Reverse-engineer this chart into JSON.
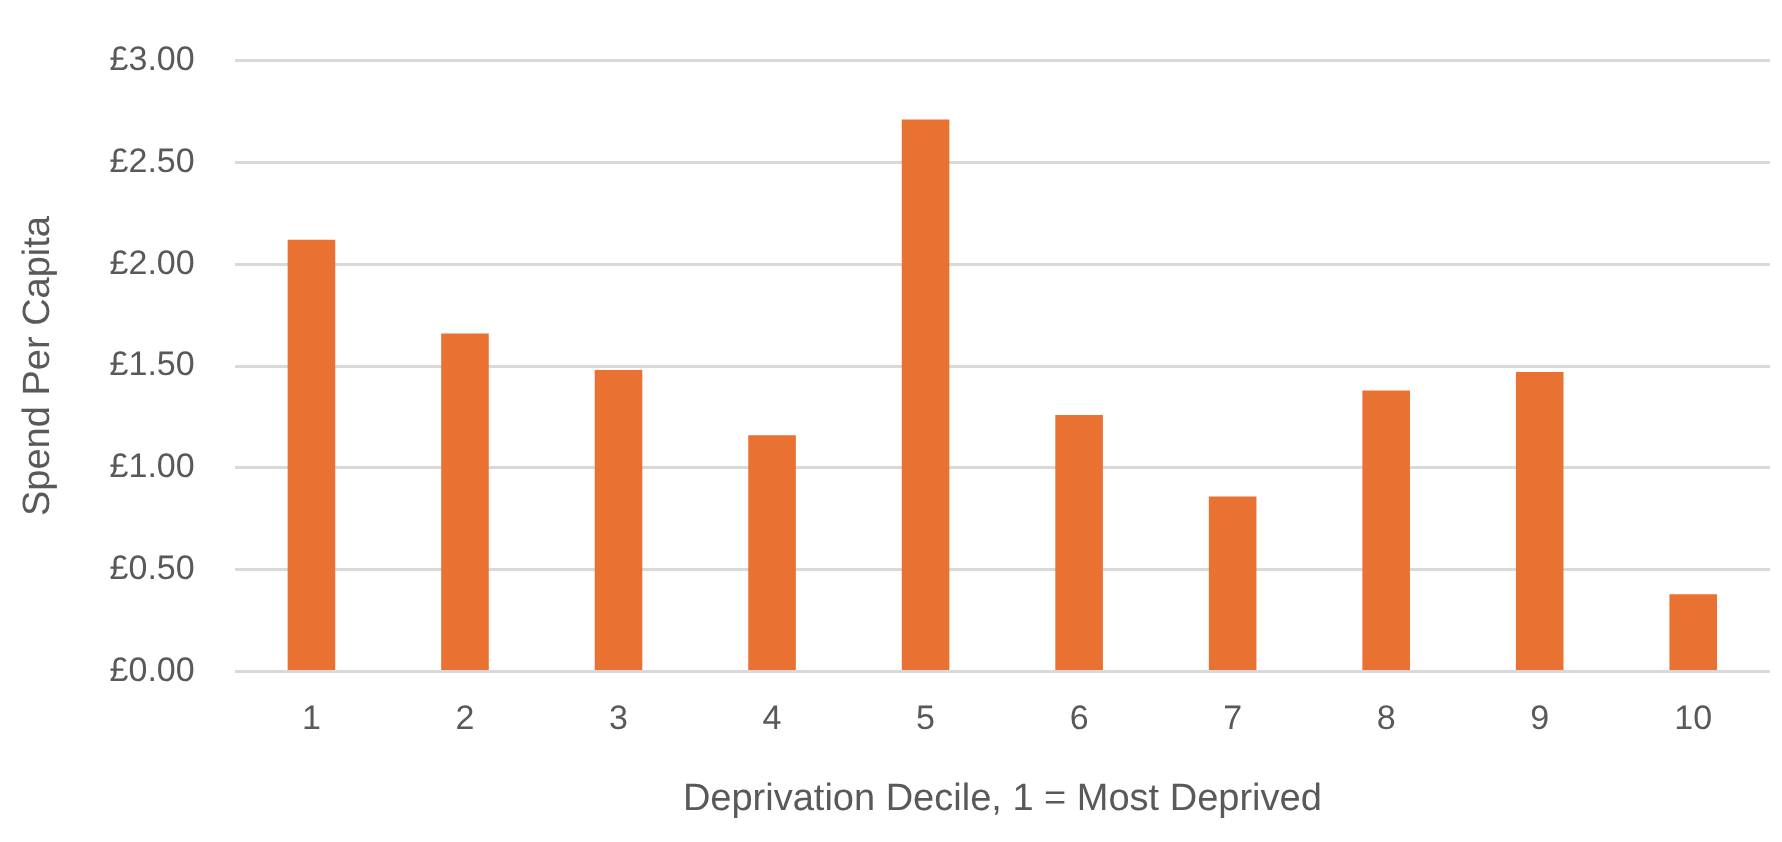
{
  "chart_data": {
    "type": "bar",
    "xlabel": "Deprivation Decile, 1 = Most Deprived",
    "ylabel": "Spend Per Capita",
    "categories": [
      "1",
      "2",
      "3",
      "4",
      "5",
      "6",
      "7",
      "8",
      "9",
      "10"
    ],
    "values": [
      2.12,
      1.66,
      1.48,
      1.16,
      2.71,
      1.26,
      0.86,
      1.38,
      1.47,
      0.38
    ],
    "color": "#e97132",
    "ylim": [
      0,
      3
    ],
    "yticks": [
      {
        "value": 0,
        "label": "£0.00"
      },
      {
        "value": 0.5,
        "label": "£0.50"
      },
      {
        "value": 1,
        "label": "£1.00"
      },
      {
        "value": 1.5,
        "label": "£1.50"
      },
      {
        "value": 2,
        "label": "£2.00"
      },
      {
        "value": 2.5,
        "label": "£2.50"
      },
      {
        "value": 3,
        "label": "£3.00"
      }
    ],
    "grid": "y",
    "legend": false
  }
}
